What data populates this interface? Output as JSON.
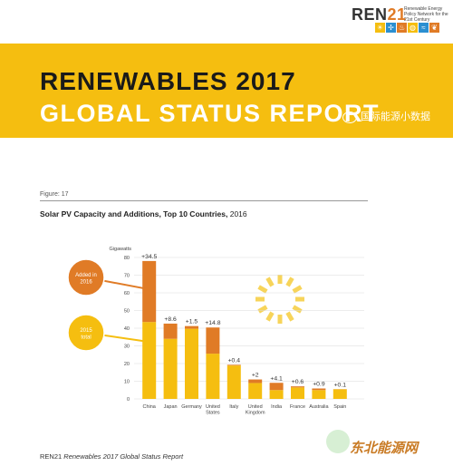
{
  "header": {
    "logo_text": "REN",
    "logo_number": "21",
    "logo_subtitle": "Renewable Energy Policy Network for the 21st Century",
    "logo_icons": [
      "sun-icon",
      "wind-icon",
      "biomass-icon",
      "geothermal-icon",
      "hydro-icon",
      "leaf-icon"
    ],
    "title_line1": "RENEWABLES 2017",
    "title_line2": "GLOBAL STATUS REPORT",
    "wechat_text": "国际能源小数据",
    "colors": {
      "banner": "#f5be10",
      "logo_accent": "#e07b26"
    }
  },
  "figure": {
    "label": "Figure: 17",
    "title_bold": "Solar PV Capacity and Additions, Top 10 Countries,",
    "title_year": "2016"
  },
  "footer": {
    "brand": "REN21",
    "publication": "Renewables 2017 Global Status Report"
  },
  "watermark": "东北能源网",
  "chart_data": {
    "type": "bar",
    "stacked": true,
    "unit_label": "Gigawatts",
    "categories": [
      "China",
      "Japan",
      "Germany",
      "United States",
      "Italy",
      "United Kingdom",
      "India",
      "France",
      "Australia",
      "Spain"
    ],
    "category_lines": [
      [
        "China"
      ],
      [
        "Japan"
      ],
      [
        "Germany"
      ],
      [
        "United",
        "States"
      ],
      [
        "Italy"
      ],
      [
        "United",
        "Kingdom"
      ],
      [
        "India"
      ],
      [
        "France"
      ],
      [
        "Australia"
      ],
      [
        "Spain"
      ]
    ],
    "series": [
      {
        "name": "2015 total",
        "color": "#f5be10",
        "values": [
          43.5,
          34,
          39.7,
          25.6,
          18.9,
          9.0,
          5.0,
          6.5,
          5.0,
          5.4
        ]
      },
      {
        "name": "Added in 2016",
        "color": "#e07b26",
        "values": [
          34.5,
          8.6,
          1.5,
          14.8,
          0.4,
          2.0,
          4.1,
          0.6,
          0.9,
          0.1
        ]
      }
    ],
    "data_labels": [
      "+34.5",
      "+8.6",
      "+1.5",
      "+14.8",
      "+0.4",
      "+2",
      "+4.1",
      "+0.6",
      "+0.9",
      "+0.1"
    ],
    "ylim": [
      0,
      80
    ],
    "yticks": [
      0,
      10,
      20,
      30,
      40,
      50,
      60,
      70,
      80
    ],
    "grid": true
  }
}
